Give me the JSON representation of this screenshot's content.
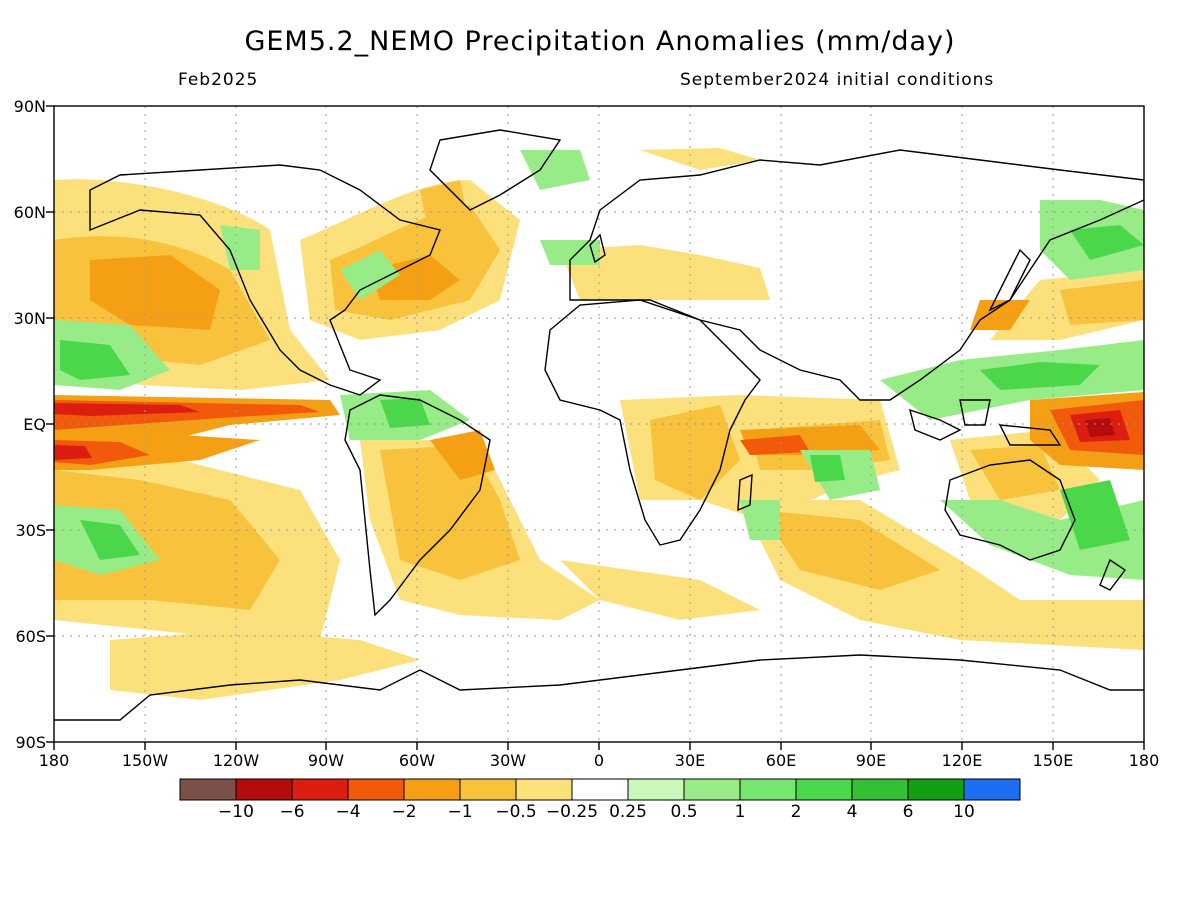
{
  "title": "GEM5.2_NEMO Precipitation Anomalies (mm/day)",
  "subtitle_left": "Feb2025",
  "subtitle_right": "September2024 initial conditions",
  "lat_labels": [
    "90N",
    "60N",
    "30N",
    "EQ",
    "30S",
    "60S",
    "90S"
  ],
  "lon_labels": [
    "180",
    "150W",
    "120W",
    "90W",
    "60W",
    "30W",
    "0",
    "30E",
    "60E",
    "90E",
    "120E",
    "150E",
    "180"
  ],
  "colorbar": {
    "colors": [
      "#7a5048",
      "#b40c0c",
      "#dc1e10",
      "#f05a0a",
      "#f5a014",
      "#f8c23c",
      "#fbe07c",
      "#ffffff",
      "#c9f8b8",
      "#98ec88",
      "#76e670",
      "#4ad84a",
      "#34c034",
      "#12a012",
      "#1e6ef0"
    ],
    "labels": [
      "−10",
      "−6",
      "−4",
      "−2",
      "−1",
      "−0.5",
      "−0.25",
      "0.25",
      "0.5",
      "1",
      "2",
      "4",
      "6",
      "10"
    ]
  }
}
